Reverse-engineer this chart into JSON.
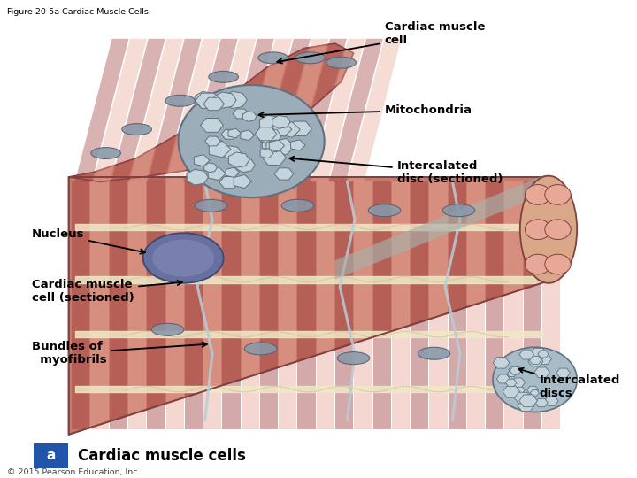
{
  "figure_title": "Figure 20-5a Cardiac Muscle Cells.",
  "caption_letter": "a",
  "caption_text": "Cardiac muscle cells",
  "copyright": "© 2015 Pearson Education, Inc.",
  "background_color": "#ffffff",
  "annotations": [
    {
      "text": "Cardiac muscle\ncell",
      "lxy": [
        0.62,
        0.93
      ],
      "axy": [
        0.44,
        0.87
      ],
      "ha": "left"
    },
    {
      "text": "Mitochondria",
      "lxy": [
        0.62,
        0.77
      ],
      "axy": [
        0.41,
        0.76
      ],
      "ha": "left"
    },
    {
      "text": "Intercalated\ndisc (sectioned)",
      "lxy": [
        0.64,
        0.64
      ],
      "axy": [
        0.46,
        0.67
      ],
      "ha": "left"
    },
    {
      "text": "Nucleus",
      "lxy": [
        0.05,
        0.51
      ],
      "axy": [
        0.24,
        0.47
      ],
      "ha": "left"
    },
    {
      "text": "Cardiac muscle\ncell (sectioned)",
      "lxy": [
        0.05,
        0.39
      ],
      "axy": [
        0.3,
        0.41
      ],
      "ha": "left"
    },
    {
      "text": "Bundles of\n  myofibrils",
      "lxy": [
        0.05,
        0.26
      ],
      "axy": [
        0.34,
        0.28
      ],
      "ha": "left"
    },
    {
      "text": "Intercalated\ndiscs",
      "lxy": [
        0.87,
        0.19
      ],
      "axy": [
        0.83,
        0.23
      ],
      "ha": "left"
    }
  ],
  "fig_width": 7.2,
  "fig_height": 5.4,
  "dpi": 100
}
